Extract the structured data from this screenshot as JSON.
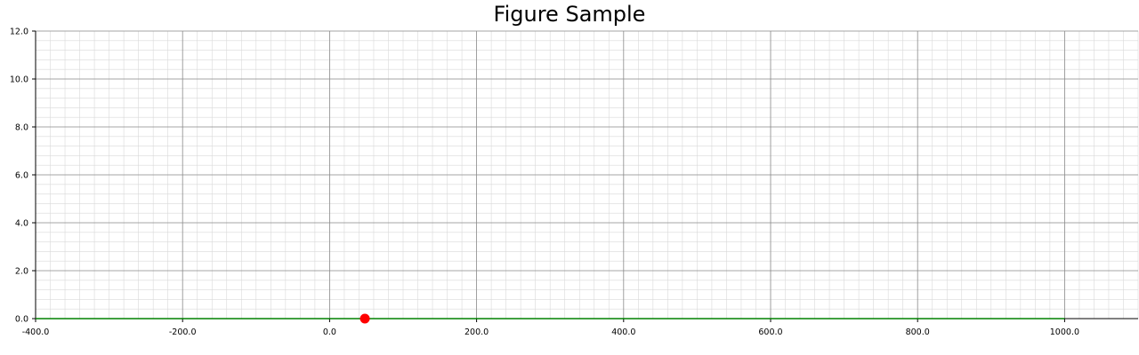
{
  "chart_data": {
    "type": "scatter",
    "title": "Figure Sample",
    "xlabel": "",
    "ylabel": "",
    "xlim": [
      -400,
      1100
    ],
    "ylim": [
      0,
      12
    ],
    "x_major_ticks": [
      -400,
      -200,
      0,
      200,
      400,
      600,
      800,
      1000
    ],
    "y_major_ticks": [
      0,
      2,
      4,
      6,
      8,
      10,
      12
    ],
    "x_tick_labels": [
      "-400.0",
      "-200.0",
      "0.0",
      "200.0",
      "400.0",
      "600.0",
      "800.0",
      "1000.0"
    ],
    "y_tick_labels": [
      "0.0",
      "2.0",
      "4.0",
      "6.0",
      "8.0",
      "10.0",
      "12.0"
    ],
    "x_minor_step": 20,
    "y_minor_step": 0.4,
    "grid": true,
    "series": [
      {
        "kind": "line",
        "x": [
          -400,
          1000
        ],
        "y": [
          0,
          0
        ],
        "color": "#008000"
      },
      {
        "kind": "point",
        "x": [
          48
        ],
        "y": [
          0
        ],
        "color": "#ff0000"
      }
    ]
  }
}
